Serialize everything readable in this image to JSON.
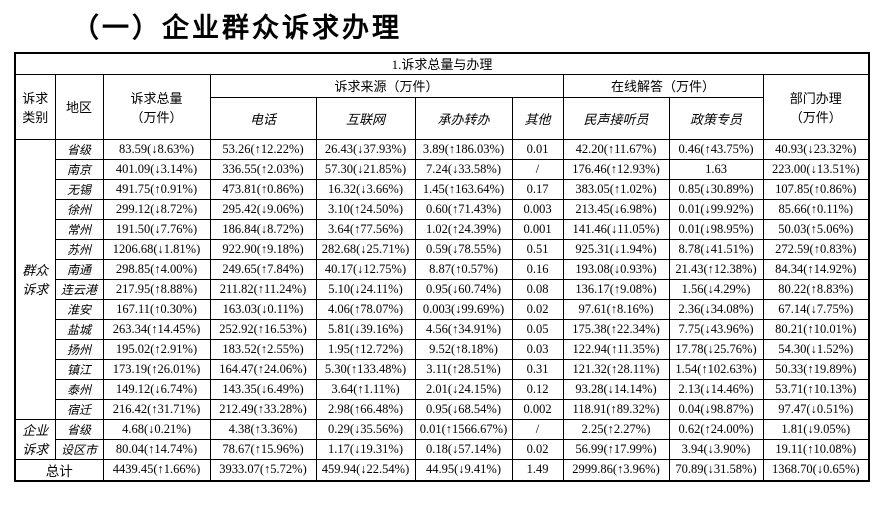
{
  "page_title": "（一）企业群众诉求办理",
  "table": {
    "section_title": "1.诉求总量与办理",
    "headers": {
      "category": "诉求\n类别",
      "region": "地区",
      "total": "诉求总量\n（万件）",
      "source_group": "诉求来源（万件）",
      "source_cols": [
        "电话",
        "互联网",
        "承办转办",
        "其他"
      ],
      "online_group": "在线解答（万件）",
      "online_cols": [
        "民声接听员",
        "政策专员"
      ],
      "dept": "部门办理\n（万件）"
    },
    "groups": [
      {
        "category": "群众\n诉求",
        "rows": [
          {
            "region": "省级",
            "cells": [
              "83.59(↓8.63%)",
              "53.26(↑12.22%)",
              "26.43(↓37.93%)",
              "3.89(↑186.03%)",
              "0.01",
              "42.20(↑11.67%)",
              "0.46(↑43.75%)",
              "40.93(↓23.32%)"
            ]
          },
          {
            "region": "南京",
            "cells": [
              "401.09(↓3.14%)",
              "336.55(↑2.03%)",
              "57.30(↓21.85%)",
              "7.24(↓33.58%)",
              "/",
              "176.46(↑12.93%)",
              "1.63",
              "223.00(↓13.51%)"
            ]
          },
          {
            "region": "无锡",
            "cells": [
              "491.75(↑0.91%)",
              "473.81(↑0.86%)",
              "16.32(↓3.66%)",
              "1.45(↑163.64%)",
              "0.17",
              "383.05(↑1.02%)",
              "0.85(↓30.89%)",
              "107.85(↑0.86%)"
            ]
          },
          {
            "region": "徐州",
            "cells": [
              "299.12(↓8.72%)",
              "295.42(↓9.06%)",
              "3.10(↑24.50%)",
              "0.60(↑71.43%)",
              "0.003",
              "213.45(↓6.98%)",
              "0.01(↓99.92%)",
              "85.66(↑0.11%)"
            ]
          },
          {
            "region": "常州",
            "cells": [
              "191.50(↓7.76%)",
              "186.84(↓8.72%)",
              "3.64(↑77.56%)",
              "1.02(↑24.39%)",
              "0.001",
              "141.46(↓11.05%)",
              "0.01(↓98.95%)",
              "50.03(↑5.06%)"
            ]
          },
          {
            "region": "苏州",
            "cells": [
              "1206.68(↓1.81%)",
              "922.90(↑9.18%)",
              "282.68(↓25.71%)",
              "0.59(↓78.55%)",
              "0.51",
              "925.31(↓1.94%)",
              "8.78(↓41.51%)",
              "272.59(↑0.83%)"
            ]
          },
          {
            "region": "南通",
            "cells": [
              "298.85(↑4.00%)",
              "249.65(↑7.84%)",
              "40.17(↓12.75%)",
              "8.87(↑0.57%)",
              "0.16",
              "193.08(↓0.93%)",
              "21.43(↑12.38%)",
              "84.34(↑14.92%)"
            ]
          },
          {
            "region": "连云港",
            "cells": [
              "217.95(↑8.88%)",
              "211.82(↑11.24%)",
              "5.10(↓24.11%)",
              "0.95(↓60.74%)",
              "0.08",
              "136.17(↑9.08%)",
              "1.56(↓4.29%)",
              "80.22(↑8.83%)"
            ]
          },
          {
            "region": "淮安",
            "cells": [
              "167.11(↑0.30%)",
              "163.03(↓0.11%)",
              "4.06(↑78.07%)",
              "0.003(↓99.69%)",
              "0.02",
              "97.61(↑8.16%)",
              "2.36(↓34.08%)",
              "67.14(↓7.75%)"
            ]
          },
          {
            "region": "盐城",
            "cells": [
              "263.34(↑14.45%)",
              "252.92(↑16.53%)",
              "5.81(↓39.16%)",
              "4.56(↑34.91%)",
              "0.05",
              "175.38(↑22.34%)",
              "7.75(↓43.96%)",
              "80.21(↑10.01%)"
            ]
          },
          {
            "region": "扬州",
            "cells": [
              "195.02(↑2.91%)",
              "183.52(↑2.55%)",
              "1.95(↑12.72%)",
              "9.52(↑8.18%)",
              "0.03",
              "122.94(↑11.35%)",
              "17.78(↓25.76%)",
              "54.30(↓1.52%)"
            ]
          },
          {
            "region": "镇江",
            "cells": [
              "173.19(↑26.01%)",
              "164.47(↑24.06%)",
              "5.30(↑133.48%)",
              "3.11(↑28.51%)",
              "0.31",
              "121.32(↑28.11%)",
              "1.54(↑102.63%)",
              "50.33(↑19.89%)"
            ]
          },
          {
            "region": "泰州",
            "cells": [
              "149.12(↓6.74%)",
              "143.35(↓6.49%)",
              "3.64(↑1.11%)",
              "2.01(↓24.15%)",
              "0.12",
              "93.28(↓14.14%)",
              "2.13(↓14.46%)",
              "53.71(↑10.13%)"
            ]
          },
          {
            "region": "宿迁",
            "cells": [
              "216.42(↑31.71%)",
              "212.49(↑33.28%)",
              "2.98(↑66.48%)",
              "0.95(↓68.54%)",
              "0.002",
              "118.91(↑89.32%)",
              "0.04(↓98.87%)",
              "97.47(↓0.51%)"
            ]
          }
        ]
      },
      {
        "category": "企业\n诉求",
        "rows": [
          {
            "region": "省级",
            "cells": [
              "4.68(↓0.21%)",
              "4.38(↑3.36%)",
              "0.29(↓35.56%)",
              "0.01(↑1566.67%)",
              "/",
              "2.25(↑2.27%)",
              "0.62(↑24.00%)",
              "1.81(↓9.05%)"
            ]
          },
          {
            "region": "设区市",
            "cells": [
              "80.04(↑14.74%)",
              "78.67(↑15.96%)",
              "1.17(↓19.31%)",
              "0.18(↓57.14%)",
              "0.02",
              "56.99(↑17.99%)",
              "3.94(↓3.90%)",
              "19.11(↑10.08%)"
            ]
          }
        ]
      }
    ],
    "total_row": {
      "label": "总计",
      "cells": [
        "4439.45(↑1.66%)",
        "3933.07(↑5.72%)",
        "459.94(↓22.54%)",
        "44.95(↓9.41%)",
        "1.49",
        "2999.86(↑3.96%)",
        "70.89(↓31.58%)",
        "1368.70(↓0.65%)"
      ]
    }
  }
}
